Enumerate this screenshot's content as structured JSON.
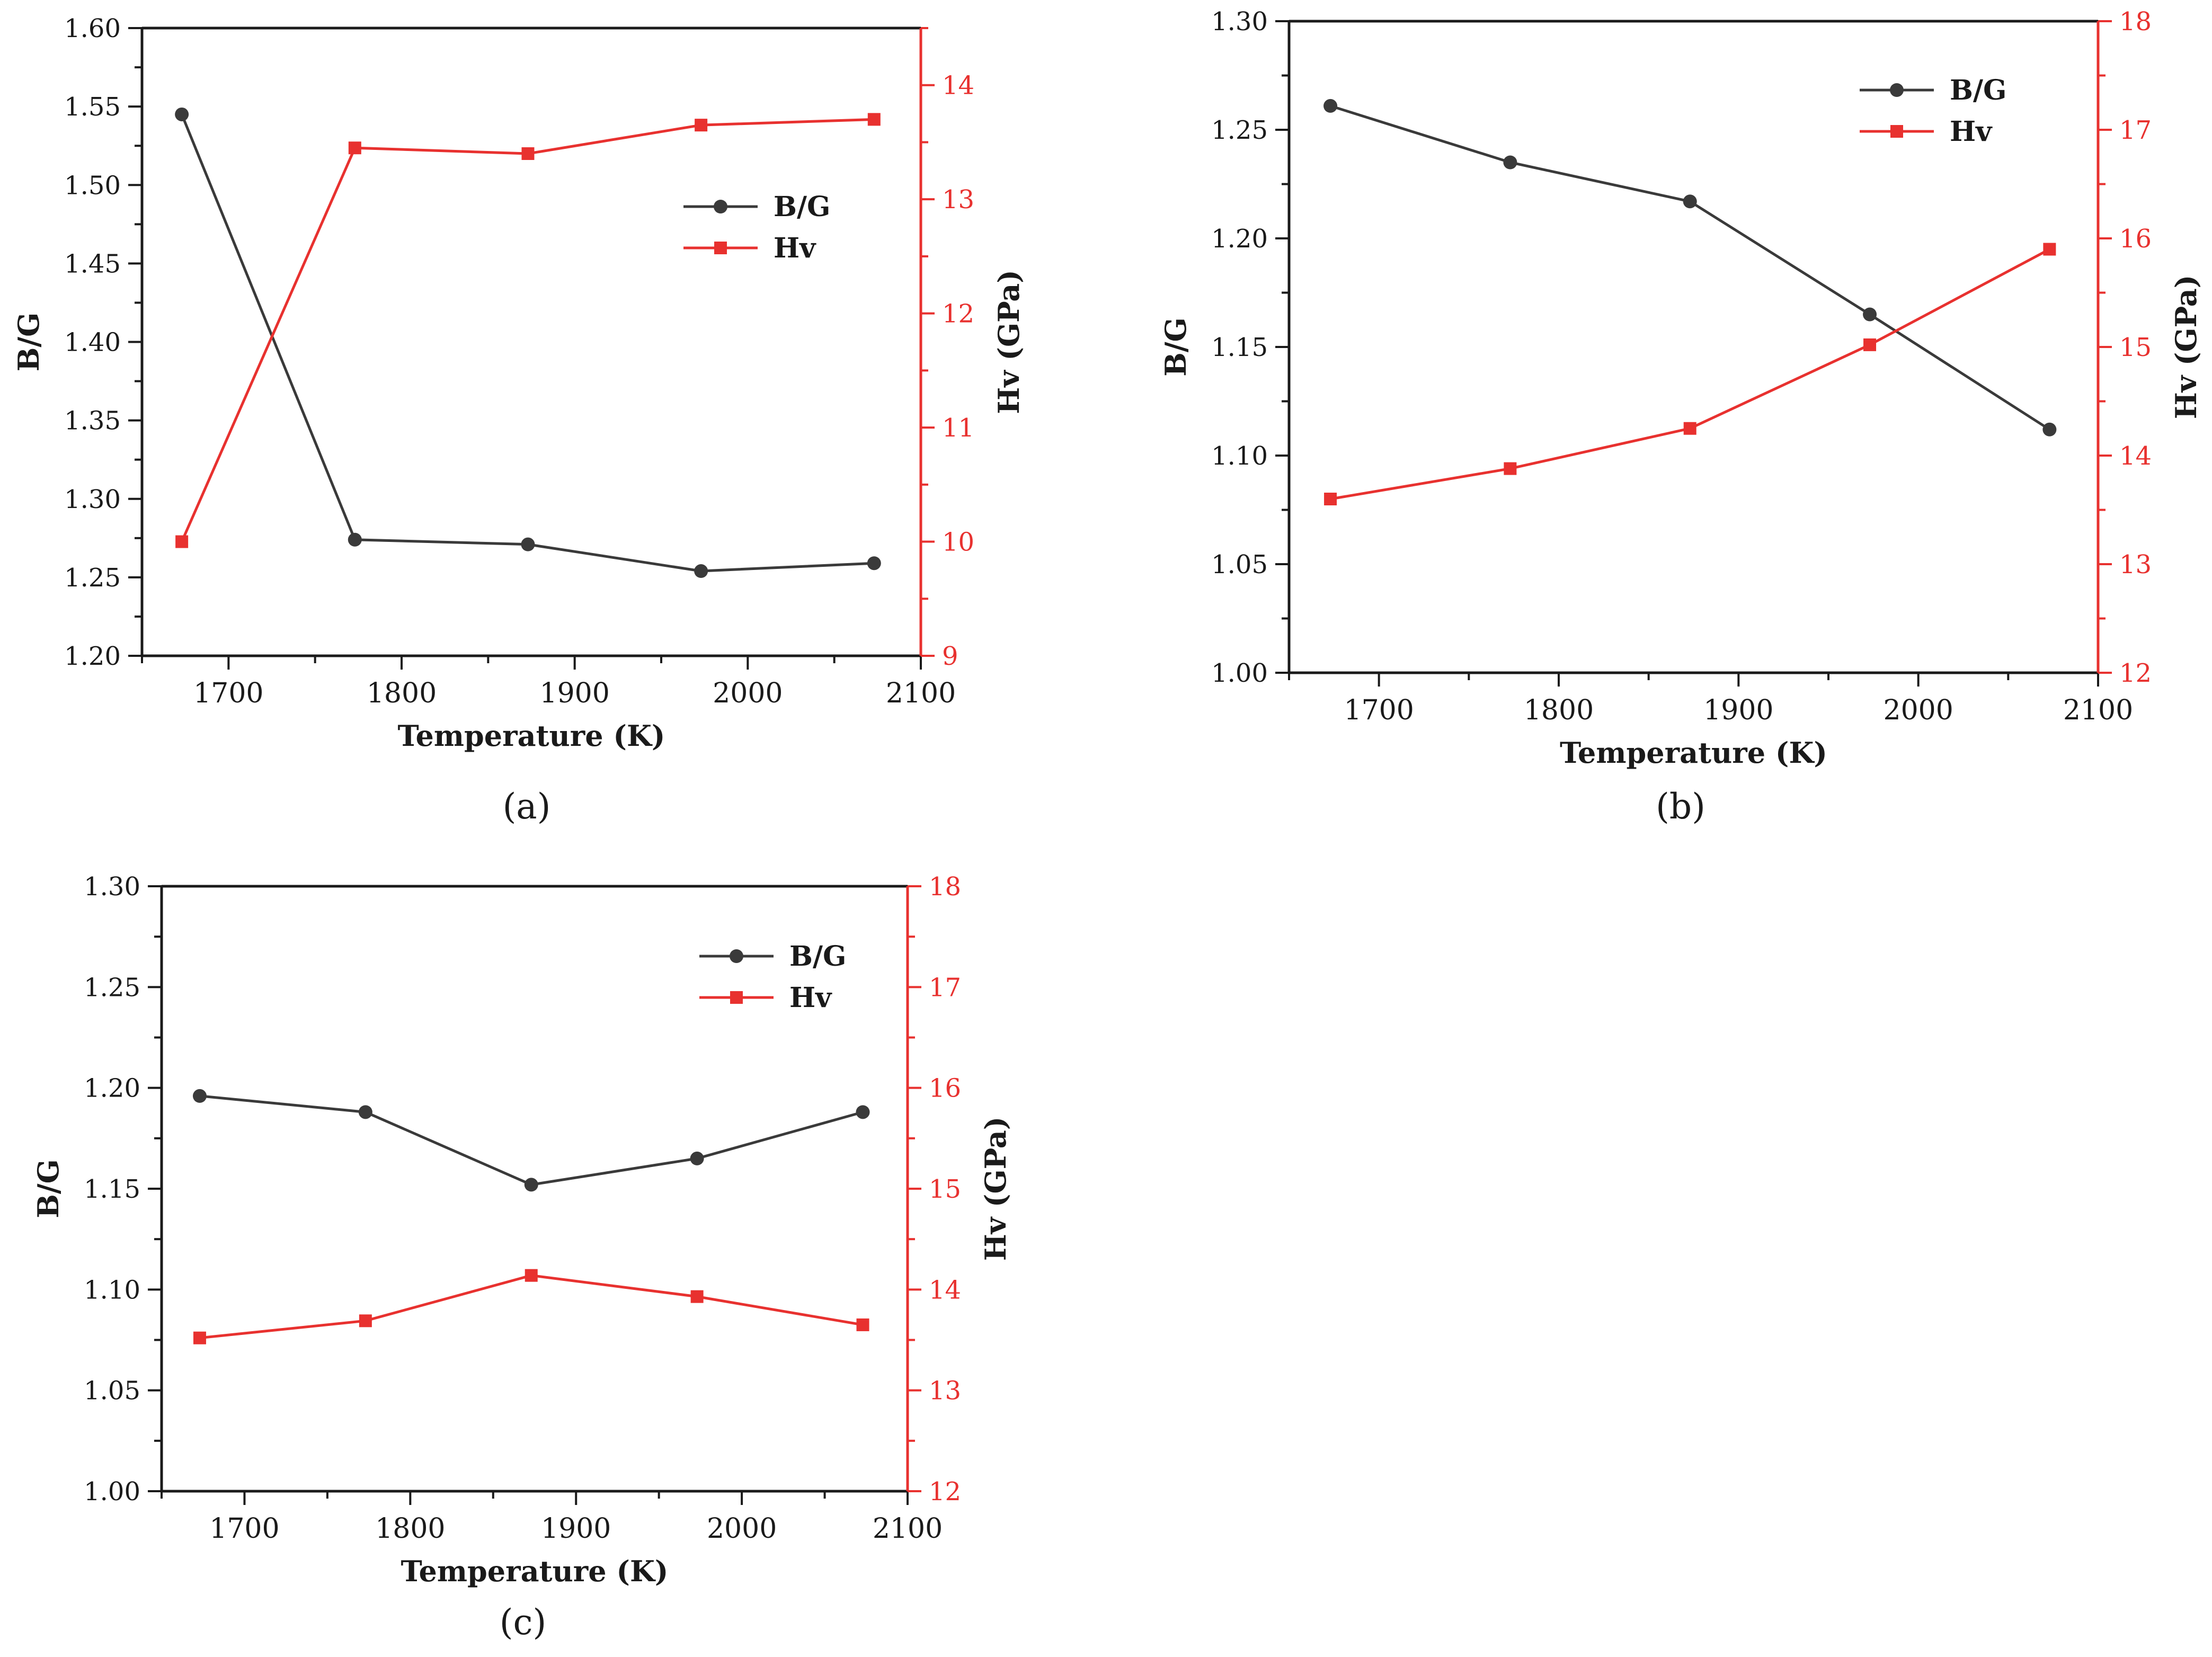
{
  "colors": {
    "bg_series": "#3a3a3a",
    "hv_series": "#e8312f",
    "axis_left": "#1a1a1a",
    "axis_right": "#e8312f",
    "text": "#1a1a1a"
  },
  "chart_data": [
    {
      "type": "line",
      "panel_label": "a",
      "caption": "(a)",
      "xlabel": "Temperature (K)",
      "ylabel": "B/G",
      "y2label": "Hv (GPa)",
      "xlim": [
        1650,
        2100
      ],
      "xticks": [
        1700,
        1800,
        1900,
        2000,
        2100
      ],
      "ylim": [
        1.2,
        1.6
      ],
      "yticks": [
        1.2,
        1.25,
        1.3,
        1.35,
        1.4,
        1.45,
        1.5,
        1.55,
        1.6
      ],
      "y2lim": [
        9,
        14.5
      ],
      "y2ticks": [
        9,
        10,
        11,
        12,
        13,
        14
      ],
      "legend_position": "center-right",
      "x": [
        1673,
        1773,
        1873,
        1973,
        2073
      ],
      "series": [
        {
          "name": "B/G",
          "axis": "left",
          "marker": "circle",
          "values": [
            1.545,
            1.274,
            1.271,
            1.254,
            1.259
          ]
        },
        {
          "name": "Hv",
          "axis": "right",
          "marker": "square",
          "values": [
            10.0,
            13.45,
            13.4,
            13.65,
            13.7
          ]
        }
      ]
    },
    {
      "type": "line",
      "panel_label": "b",
      "caption": "(b)",
      "xlabel": "Temperature (K)",
      "ylabel": "B/G",
      "y2label": "Hv (GPa)",
      "xlim": [
        1650,
        2100
      ],
      "xticks": [
        1700,
        1800,
        1900,
        2000,
        2100
      ],
      "ylim": [
        1.0,
        1.3
      ],
      "yticks": [
        1.0,
        1.05,
        1.1,
        1.15,
        1.2,
        1.25,
        1.3
      ],
      "y2lim": [
        12,
        18
      ],
      "y2ticks": [
        12,
        13,
        14,
        15,
        16,
        17,
        18
      ],
      "legend_position": "top-right",
      "x": [
        1673,
        1773,
        1873,
        1973,
        2073
      ],
      "series": [
        {
          "name": "B/G",
          "axis": "left",
          "marker": "circle",
          "values": [
            1.261,
            1.235,
            1.217,
            1.165,
            1.112
          ]
        },
        {
          "name": "Hv",
          "axis": "right",
          "marker": "square",
          "values": [
            13.6,
            13.88,
            14.25,
            15.02,
            15.9
          ]
        }
      ]
    },
    {
      "type": "line",
      "panel_label": "c",
      "caption": "(c)",
      "xlabel": "Temperature (K)",
      "ylabel": "B/G",
      "y2label": "Hv (GPa)",
      "xlim": [
        1650,
        2100
      ],
      "xticks": [
        1700,
        1800,
        1900,
        2000,
        2100
      ],
      "ylim": [
        1.0,
        1.3
      ],
      "yticks": [
        1.0,
        1.05,
        1.1,
        1.15,
        1.2,
        1.25,
        1.3
      ],
      "y2lim": [
        12,
        18
      ],
      "y2ticks": [
        12,
        13,
        14,
        15,
        16,
        17,
        18
      ],
      "legend_position": "top-right",
      "x": [
        1673,
        1773,
        1873,
        1973,
        2073
      ],
      "series": [
        {
          "name": "B/G",
          "axis": "left",
          "marker": "circle",
          "values": [
            1.196,
            1.188,
            1.152,
            1.165,
            1.188
          ]
        },
        {
          "name": "Hv",
          "axis": "right",
          "marker": "square",
          "values": [
            13.52,
            13.69,
            14.14,
            13.93,
            13.65
          ]
        }
      ]
    }
  ]
}
